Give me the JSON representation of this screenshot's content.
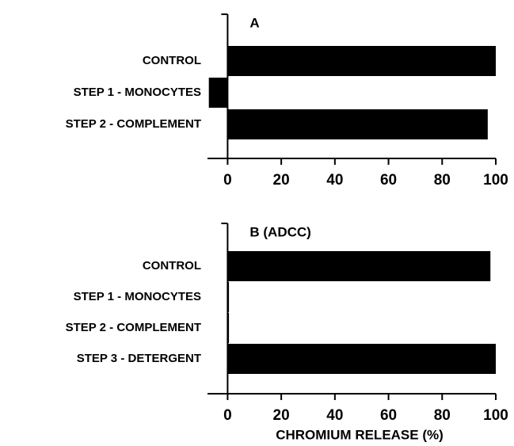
{
  "chart_data": [
    {
      "type": "bar",
      "orientation": "horizontal",
      "title": "A",
      "categories": [
        "CONTROL",
        "STEP 1 - MONOCYTES",
        "STEP 2 - COMPLEMENT"
      ],
      "values": [
        100,
        -7,
        97
      ],
      "color": "#000000",
      "xlim": [
        -7.5,
        100
      ],
      "xticks": [
        0,
        20,
        40,
        60,
        80,
        100
      ]
    },
    {
      "type": "bar",
      "orientation": "horizontal",
      "title": "B (ADCC)",
      "categories": [
        "CONTROL",
        "STEP 1 - MONOCYTES",
        "STEP 2 - COMPLEMENT",
        "STEP 3 - DETERGENT"
      ],
      "values": [
        98,
        0.5,
        0.5,
        100
      ],
      "color": "#000000",
      "xlim": [
        -7.5,
        100
      ],
      "xticks": [
        0,
        20,
        40,
        60,
        80,
        100
      ],
      "xlabel": "CHROMIUM RELEASE (%)"
    }
  ]
}
